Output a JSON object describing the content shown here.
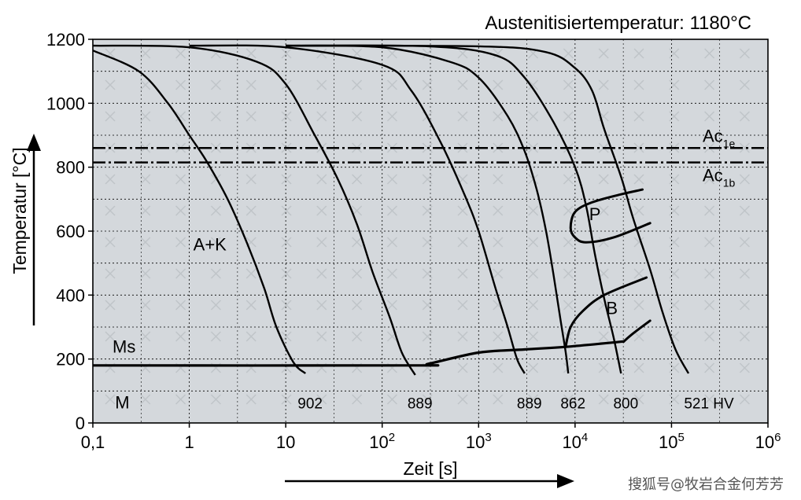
{
  "chart_data": {
    "type": "line",
    "title": "Austenitisiertemperatur: 1180°C",
    "xlabel": "Zeit [s]",
    "ylabel": "Temperatur [°C]",
    "xscale": "log",
    "xlim": [
      0.1,
      1000000
    ],
    "ylim": [
      0,
      1200
    ],
    "grid": true,
    "x_tick_labels": [
      {
        "x": 0.1,
        "base": "0,1",
        "exp": ""
      },
      {
        "x": 1,
        "base": "1",
        "exp": ""
      },
      {
        "x": 10,
        "base": "10",
        "exp": ""
      },
      {
        "x": 100,
        "base": "10",
        "exp": "2"
      },
      {
        "x": 1000,
        "base": "10",
        "exp": "3"
      },
      {
        "x": 10000,
        "base": "10",
        "exp": "4"
      },
      {
        "x": 100000,
        "base": "10",
        "exp": "5"
      },
      {
        "x": 1000000,
        "base": "10",
        "exp": "6"
      }
    ],
    "y_ticks": [
      0,
      200,
      400,
      600,
      800,
      1000,
      1200
    ],
    "reference_lines": [
      {
        "base": "Ac",
        "sub": "1e",
        "y": 860
      },
      {
        "base": "Ac",
        "sub": "1b",
        "y": 815
      }
    ],
    "cooling_curves": [
      {
        "label": "902",
        "points": [
          [
            0.1,
            1165
          ],
          [
            0.3,
            1100
          ],
          [
            0.6,
            1000
          ],
          [
            1.0,
            900
          ],
          [
            1.5,
            820
          ],
          [
            2.5,
            700
          ],
          [
            4,
            560
          ],
          [
            6,
            420
          ],
          [
            8,
            300
          ],
          [
            12,
            190
          ],
          [
            16,
            155
          ]
        ]
      },
      {
        "label": "889",
        "points": [
          [
            0.1,
            1180
          ],
          [
            1,
            1175
          ],
          [
            5,
            1130
          ],
          [
            10,
            1060
          ],
          [
            20,
            900
          ],
          [
            35,
            760
          ],
          [
            55,
            620
          ],
          [
            80,
            470
          ],
          [
            120,
            330
          ],
          [
            160,
            220
          ],
          [
            220,
            150
          ]
        ]
      },
      {
        "label": "889",
        "points": [
          [
            1,
            1180
          ],
          [
            10,
            1175
          ],
          [
            100,
            1120
          ],
          [
            200,
            1040
          ],
          [
            400,
            880
          ],
          [
            700,
            720
          ],
          [
            1000,
            600
          ],
          [
            1500,
            420
          ],
          [
            2000,
            300
          ],
          [
            2500,
            200
          ],
          [
            3000,
            155
          ]
        ]
      },
      {
        "label": "862",
        "points": [
          [
            10,
            1180
          ],
          [
            100,
            1175
          ],
          [
            500,
            1130
          ],
          [
            1000,
            1080
          ],
          [
            2000,
            960
          ],
          [
            3000,
            850
          ],
          [
            4000,
            730
          ],
          [
            5000,
            600
          ],
          [
            6000,
            460
          ],
          [
            7000,
            330
          ],
          [
            8000,
            220
          ],
          [
            8500,
            155
          ]
        ]
      },
      {
        "label": "800",
        "points": [
          [
            10,
            1180
          ],
          [
            300,
            1178
          ],
          [
            1500,
            1150
          ],
          [
            3000,
            1080
          ],
          [
            6000,
            940
          ],
          [
            10000,
            800
          ],
          [
            13000,
            680
          ],
          [
            16000,
            530
          ],
          [
            20000,
            390
          ],
          [
            25000,
            270
          ],
          [
            30000,
            155
          ]
        ]
      },
      {
        "label": "521",
        "points": [
          [
            10,
            1180
          ],
          [
            1000,
            1178
          ],
          [
            5000,
            1160
          ],
          [
            10000,
            1110
          ],
          [
            15000,
            1040
          ],
          [
            20000,
            920
          ],
          [
            30000,
            770
          ],
          [
            40000,
            640
          ],
          [
            60000,
            480
          ],
          [
            80000,
            350
          ],
          [
            110000,
            230
          ],
          [
            150000,
            155
          ]
        ]
      }
    ],
    "curve_label_suffix": "HV",
    "transformation_lines": [
      {
        "name": "P",
        "points": [
          [
            50000,
            730
          ],
          [
            30000,
            715
          ],
          [
            15000,
            690
          ],
          [
            10000,
            660
          ],
          [
            9000,
            610
          ],
          [
            10000,
            580
          ],
          [
            13000,
            565
          ],
          [
            25000,
            580
          ],
          [
            60000,
            625
          ]
        ]
      },
      {
        "name": "B",
        "points": [
          [
            8000,
            240
          ],
          [
            9000,
            300
          ],
          [
            12000,
            350
          ],
          [
            20000,
            400
          ],
          [
            55000,
            455
          ]
        ]
      },
      {
        "name": "B",
        "points": [
          [
            32000,
            255
          ],
          [
            40000,
            280
          ],
          [
            60000,
            320
          ]
        ]
      },
      {
        "name": "Ms",
        "points": [
          [
            0.1,
            180
          ],
          [
            200,
            180
          ],
          [
            300,
            185
          ],
          [
            1000,
            220
          ],
          [
            3000,
            230
          ],
          [
            8000,
            238
          ],
          [
            32000,
            255
          ]
        ]
      }
    ],
    "region_labels": [
      {
        "text": "A+K",
        "x": 1.1,
        "y": 540
      },
      {
        "text": "P",
        "x": 14000,
        "y": 635
      },
      {
        "text": "B",
        "x": 21000,
        "y": 340
      },
      {
        "text": "Ms",
        "x": 0.16,
        "y": 220
      },
      {
        "text": "M",
        "x": 0.17,
        "y": 45
      }
    ],
    "colors": {
      "plot_background": "#d4d8dc",
      "line": "#000000",
      "grid": "#000000"
    }
  },
  "watermark": "搜狐号@牧岩合金何芳芳"
}
